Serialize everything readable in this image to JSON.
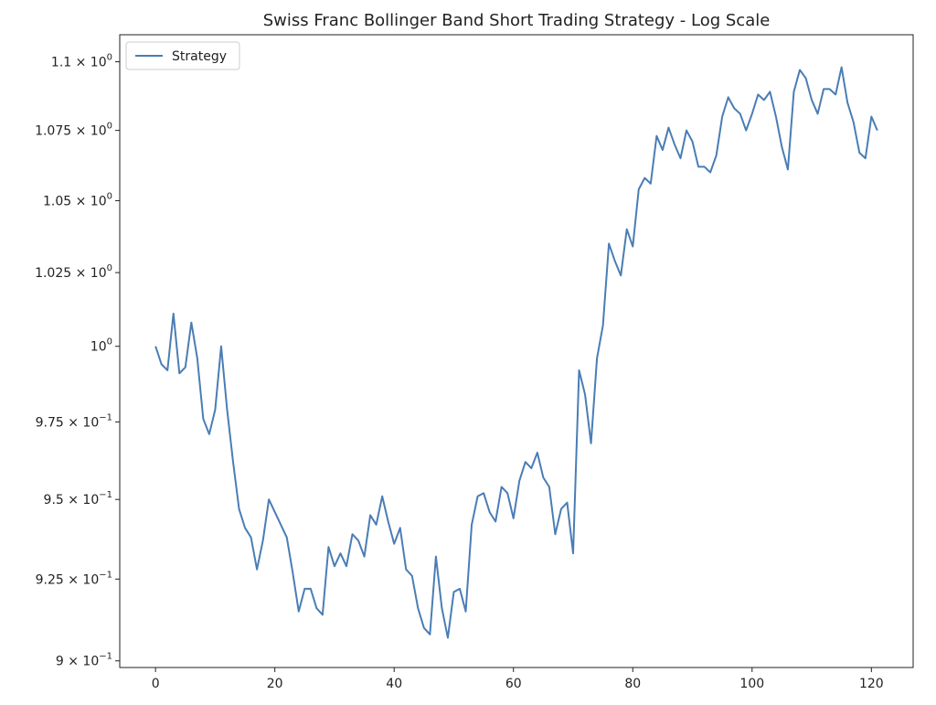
{
  "chart_data": {
    "type": "line",
    "title": "Swiss Franc Bollinger Band Short Trading Strategy - Log Scale",
    "xlabel": "",
    "ylabel": "",
    "y_scale": "log",
    "xlim": [
      -6,
      127
    ],
    "ylim": [
      0.898,
      1.11
    ],
    "grid": false,
    "legend_position": "top-left",
    "x_ticks": [
      0,
      20,
      40,
      60,
      80,
      100,
      120
    ],
    "x_tick_labels": [
      "0",
      "20",
      "40",
      "60",
      "80",
      "100",
      "120"
    ],
    "y_ticks": [
      0.9,
      0.925,
      0.95,
      0.975,
      1.0,
      1.025,
      1.05,
      1.075,
      1.1
    ],
    "y_tick_labels": [
      {
        "mantissa": "9",
        "exponent": "−1"
      },
      {
        "mantissa": "9.25",
        "exponent": "−1"
      },
      {
        "mantissa": "9.5",
        "exponent": "−1"
      },
      {
        "mantissa": "9.75",
        "exponent": "−1"
      },
      {
        "mantissa": "10",
        "exponent": "0"
      },
      {
        "mantissa": "1.025",
        "exponent": "0"
      },
      {
        "mantissa": "1.05",
        "exponent": "0"
      },
      {
        "mantissa": "1.075",
        "exponent": "0"
      },
      {
        "mantissa": "1.1",
        "exponent": "0"
      }
    ],
    "series": [
      {
        "name": "Strategy",
        "color": "#4a7db5",
        "x": [
          0,
          1,
          2,
          3,
          4,
          5,
          6,
          7,
          8,
          9,
          10,
          11,
          12,
          13,
          14,
          15,
          16,
          17,
          18,
          19,
          20,
          21,
          22,
          23,
          24,
          25,
          26,
          27,
          28,
          29,
          30,
          31,
          32,
          33,
          34,
          35,
          36,
          37,
          38,
          39,
          40,
          41,
          42,
          43,
          44,
          45,
          46,
          47,
          48,
          49,
          50,
          51,
          52,
          53,
          54,
          55,
          56,
          57,
          58,
          59,
          60,
          61,
          62,
          63,
          64,
          65,
          66,
          67,
          68,
          69,
          70,
          71,
          72,
          73,
          74,
          75,
          76,
          77,
          78,
          79,
          80,
          81,
          82,
          83,
          84,
          85,
          86,
          87,
          88,
          89,
          90,
          91,
          92,
          93,
          94,
          95,
          96,
          97,
          98,
          99,
          100,
          101,
          102,
          103,
          104,
          105,
          106,
          107,
          108,
          109,
          110,
          111,
          112,
          113,
          114,
          115,
          116,
          117,
          118,
          119,
          120,
          121
        ],
        "values": [
          1.0,
          0.994,
          0.992,
          1.011,
          0.991,
          0.993,
          1.008,
          0.996,
          0.976,
          0.971,
          0.979,
          1.0,
          0.979,
          0.962,
          0.947,
          0.941,
          0.938,
          0.928,
          0.937,
          0.95,
          0.946,
          0.942,
          0.938,
          0.927,
          0.915,
          0.922,
          0.922,
          0.916,
          0.914,
          0.935,
          0.929,
          0.933,
          0.929,
          0.939,
          0.937,
          0.932,
          0.945,
          0.942,
          0.951,
          0.943,
          0.936,
          0.941,
          0.928,
          0.926,
          0.916,
          0.91,
          0.908,
          0.932,
          0.916,
          0.907,
          0.921,
          0.922,
          0.915,
          0.942,
          0.951,
          0.952,
          0.946,
          0.943,
          0.954,
          0.952,
          0.944,
          0.956,
          0.962,
          0.96,
          0.965,
          0.957,
          0.954,
          0.939,
          0.947,
          0.949,
          0.933,
          0.992,
          0.984,
          0.968,
          0.996,
          1.007,
          1.035,
          1.029,
          1.024,
          1.04,
          1.034,
          1.054,
          1.058,
          1.056,
          1.073,
          1.068,
          1.076,
          1.07,
          1.065,
          1.075,
          1.071,
          1.062,
          1.062,
          1.06,
          1.066,
          1.08,
          1.087,
          1.083,
          1.081,
          1.075,
          1.081,
          1.088,
          1.086,
          1.089,
          1.08,
          1.069,
          1.061,
          1.089,
          1.097,
          1.094,
          1.086,
          1.081,
          1.09,
          1.09,
          1.088,
          1.098,
          1.085,
          1.078,
          1.067,
          1.065,
          1.08,
          1.075
        ]
      }
    ]
  }
}
